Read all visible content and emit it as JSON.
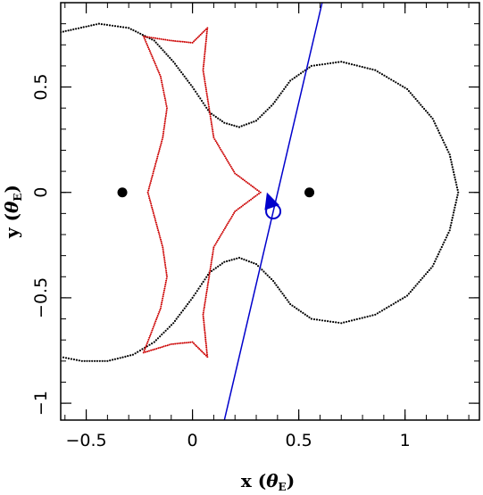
{
  "chart_data": {
    "type": "scatter",
    "xlabel_main": "x",
    "xlabel_theta": "θ",
    "xlabel_sub": "E",
    "ylabel_main": "y",
    "ylabel_theta": "θ",
    "ylabel_sub": "E",
    "xlim": [
      -0.62,
      1.35
    ],
    "ylim": [
      -1.08,
      0.9
    ],
    "x_ticks": [
      -0.5,
      0,
      0.5,
      1
    ],
    "x_tick_labels": [
      "−0.5",
      "0",
      "0.5",
      "1"
    ],
    "y_ticks": [
      -1,
      -0.5,
      0,
      0.5
    ],
    "y_tick_labels": [
      "−1",
      "−0.5",
      "0",
      "0.5"
    ],
    "colors": {
      "critical_curve": "#000000",
      "caustic": "#cc0000",
      "trajectory": "#0000cc",
      "lens": "#000000"
    },
    "lenses": [
      {
        "x": -0.33,
        "y": 0.0
      },
      {
        "x": 0.55,
        "y": 0.0
      }
    ],
    "source": {
      "x": 0.38,
      "y": -0.09,
      "arrow_tip": [
        0.35,
        0.0
      ]
    },
    "trajectory": {
      "x": [
        0.15,
        0.61
      ],
      "y": [
        -1.08,
        0.9
      ]
    },
    "caustic_points": [
      [
        0.32,
        0.0
      ],
      [
        0.2,
        0.09
      ],
      [
        0.1,
        0.26
      ],
      [
        0.05,
        0.58
      ],
      [
        0.07,
        0.78
      ],
      [
        0.0,
        0.71
      ],
      [
        -0.1,
        0.72
      ],
      [
        -0.23,
        0.74
      ],
      [
        -0.15,
        0.55
      ],
      [
        -0.12,
        0.4
      ],
      [
        -0.14,
        0.26
      ],
      [
        -0.21,
        0.0
      ],
      [
        -0.14,
        -0.26
      ],
      [
        -0.12,
        -0.4
      ],
      [
        -0.15,
        -0.55
      ],
      [
        -0.23,
        -0.76
      ],
      [
        -0.1,
        -0.72
      ],
      [
        0.0,
        -0.71
      ],
      [
        0.07,
        -0.78
      ],
      [
        0.05,
        -0.58
      ],
      [
        0.1,
        -0.26
      ],
      [
        0.2,
        -0.09
      ],
      [
        0.32,
        0.0
      ]
    ],
    "critical_curve_points": [
      [
        -0.62,
        0.76
      ],
      [
        -0.44,
        0.8
      ],
      [
        -0.3,
        0.78
      ],
      [
        -0.18,
        0.72
      ],
      [
        -0.09,
        0.62
      ],
      [
        0.0,
        0.5
      ],
      [
        0.08,
        0.38
      ],
      [
        0.15,
        0.33
      ],
      [
        0.22,
        0.31
      ],
      [
        0.3,
        0.34
      ],
      [
        0.38,
        0.42
      ],
      [
        0.46,
        0.53
      ],
      [
        0.56,
        0.6
      ],
      [
        0.7,
        0.62
      ],
      [
        0.86,
        0.58
      ],
      [
        1.01,
        0.49
      ],
      [
        1.13,
        0.35
      ],
      [
        1.21,
        0.18
      ],
      [
        1.25,
        0.0
      ],
      [
        1.21,
        -0.18
      ],
      [
        1.13,
        -0.35
      ],
      [
        1.01,
        -0.49
      ],
      [
        0.86,
        -0.58
      ],
      [
        0.7,
        -0.62
      ],
      [
        0.56,
        -0.6
      ],
      [
        0.46,
        -0.53
      ],
      [
        0.38,
        -0.42
      ],
      [
        0.3,
        -0.34
      ],
      [
        0.22,
        -0.31
      ],
      [
        0.15,
        -0.33
      ],
      [
        0.08,
        -0.38
      ],
      [
        0.0,
        -0.5
      ],
      [
        -0.09,
        -0.62
      ],
      [
        -0.18,
        -0.71
      ],
      [
        -0.28,
        -0.77
      ],
      [
        -0.4,
        -0.8
      ],
      [
        -0.52,
        -0.8
      ],
      [
        -0.62,
        -0.78
      ]
    ]
  }
}
